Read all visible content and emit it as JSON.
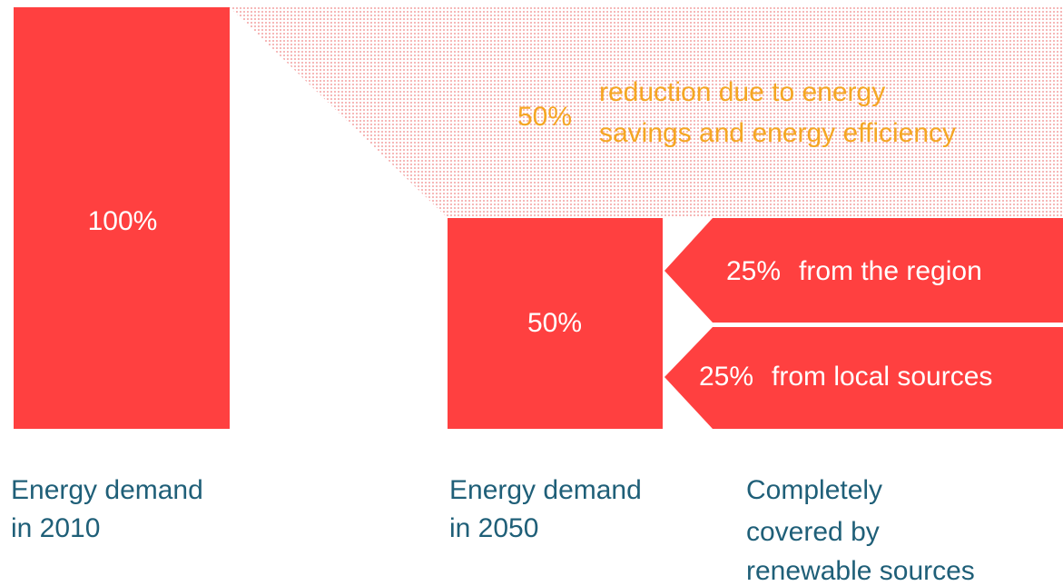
{
  "demand_2010": {
    "value": "100%",
    "label": [
      "Energy demand",
      "in 2010"
    ]
  },
  "reduction": {
    "value": "50%",
    "text": [
      "reduction due to energy",
      "savings and energy efficiency"
    ]
  },
  "demand_2050": {
    "value": "50%",
    "label": [
      "Energy demand",
      "in 2050"
    ]
  },
  "sources": [
    {
      "value": "25%",
      "text": "from the region"
    },
    {
      "value": "25%",
      "text": "from local sources"
    }
  ],
  "coverage": {
    "label": [
      "Completely",
      "covered by",
      "renewable sources"
    ]
  }
}
